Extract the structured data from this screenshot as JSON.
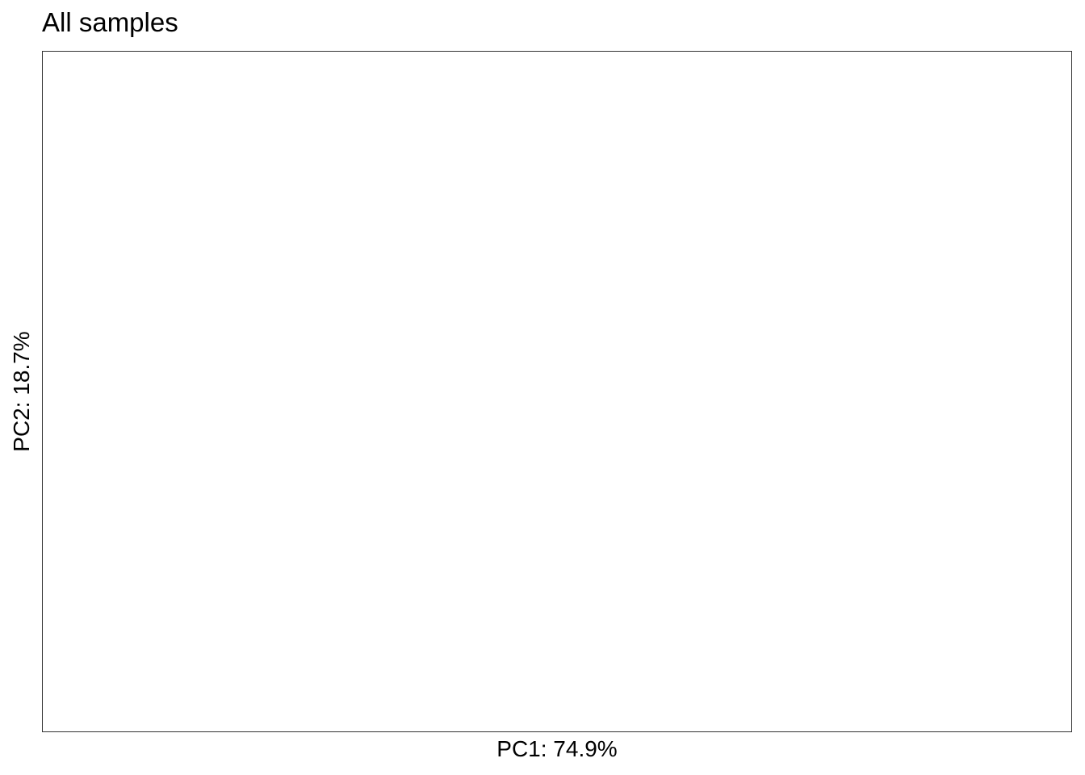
{
  "chart_data": {
    "type": "scatter",
    "title": "All samples",
    "xlabel": "PC1: 74.9%",
    "ylabel": "PC2: 18.7%",
    "series": [],
    "grid": false,
    "legend": "none"
  }
}
